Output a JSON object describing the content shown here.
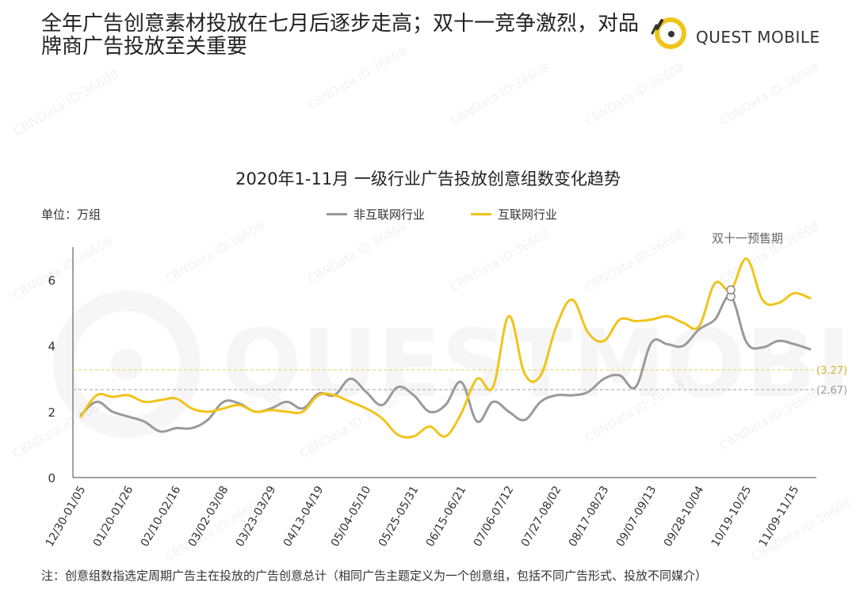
{
  "header": {
    "title": "全年广告创意素材投放在七月后逐步走高；双十一竞争激烈，对品牌商广告投放至关重要",
    "logo_text": "QUEST MOBILE"
  },
  "watermark": {
    "text": "CBNData ID:36608",
    "bg_text": "QUESTMOBILE"
  },
  "chart_data": {
    "type": "line",
    "title": "2020年1-11月 一级行业广告投放创意组数变化趋势",
    "unit_label": "单位：万组",
    "ylim": [
      0,
      7
    ],
    "y_ticks": [
      0,
      2,
      4,
      6
    ],
    "grid": false,
    "legend_position": "top",
    "x": [
      "12/30-01/05",
      "01/06-01/12",
      "01/13-01/19",
      "01/20-01/26",
      "01/27-02/02",
      "02/03-02/09",
      "02/10-02/16",
      "02/17-02/23",
      "02/24-03/01",
      "03/02-03/08",
      "03/09-03/15",
      "03/16-03/22",
      "03/23-03/29",
      "03/30-04/05",
      "04/06-04/12",
      "04/13-04/19",
      "04/20-04/26",
      "04/27-05/03",
      "05/04-05/10",
      "05/11-05/17",
      "05/18-05/24",
      "05/25-05/31",
      "06/01-06/07",
      "06/08-06/14",
      "06/15-06/21",
      "06/22-06/28",
      "06/29-07/05",
      "07/06-07/12",
      "07/13-07/19",
      "07/20-07/26",
      "07/27-08/02",
      "08/03-08/09",
      "08/10-08/16",
      "08/17-08/23",
      "08/24-08/30",
      "08/31-09/06",
      "09/07-09/13",
      "09/14-09/20",
      "09/21-09/27",
      "09/28-10/04",
      "10/05-10/11",
      "10/12-10/18",
      "10/19-10/25",
      "10/26-11/01",
      "11/02-11/08",
      "11/09-11/15",
      "11/16-11/22"
    ],
    "x_tick_labels": [
      "12/30-01/05",
      "01/20-01/26",
      "02/10-02/16",
      "03/02-03/08",
      "03/23-03/29",
      "04/13-04/19",
      "05/04-05/10",
      "05/25-05/31",
      "06/15-06/21",
      "07/06-07/12",
      "07/27-08/02",
      "08/17-08/23",
      "09/07-09/13",
      "09/28-10/04",
      "10/19-10/25",
      "11/09-11/15"
    ],
    "series": [
      {
        "name": "非互联网行业",
        "color": "#9a9a9a",
        "values": [
          1.9,
          2.3,
          2.0,
          1.85,
          1.7,
          1.4,
          1.5,
          1.5,
          1.75,
          2.3,
          2.25,
          2.0,
          2.1,
          2.3,
          2.1,
          2.55,
          2.5,
          3.0,
          2.6,
          2.2,
          2.75,
          2.5,
          2.0,
          2.2,
          2.9,
          1.7,
          2.3,
          2.0,
          1.75,
          2.3,
          2.5,
          2.5,
          2.6,
          3.0,
          3.1,
          2.75,
          4.1,
          4.05,
          4.0,
          4.5,
          4.8,
          5.5,
          4.1,
          3.95,
          4.15,
          4.05,
          3.9
        ]
      },
      {
        "name": "互联网行业",
        "color": "#f0c419",
        "values": [
          1.85,
          2.5,
          2.45,
          2.5,
          2.3,
          2.35,
          2.4,
          2.1,
          2.0,
          2.1,
          2.2,
          2.0,
          2.05,
          2.0,
          2.0,
          2.5,
          2.5,
          2.3,
          2.1,
          1.8,
          1.3,
          1.25,
          1.55,
          1.25,
          1.95,
          3.0,
          2.75,
          4.9,
          3.15,
          3.1,
          4.6,
          5.4,
          4.4,
          4.15,
          4.8,
          4.75,
          4.8,
          4.9,
          4.7,
          4.6,
          5.9,
          5.7,
          6.65,
          5.4,
          5.3,
          5.6,
          5.45
        ]
      }
    ],
    "reference_lines": [
      {
        "value": 3.27,
        "label": "(3.27)",
        "color": "#e6d76a"
      },
      {
        "value": 2.67,
        "label": "(2.67)",
        "color": "#b5b5b5"
      }
    ],
    "annotation": {
      "text": "双十一预售期",
      "x_index": 41
    }
  },
  "footnote": "注：创意组数指选定周期广告主在投放的广告创意总计（相同广告主题定义为一个创意组，包括不同广告形式、投放不同媒介）"
}
